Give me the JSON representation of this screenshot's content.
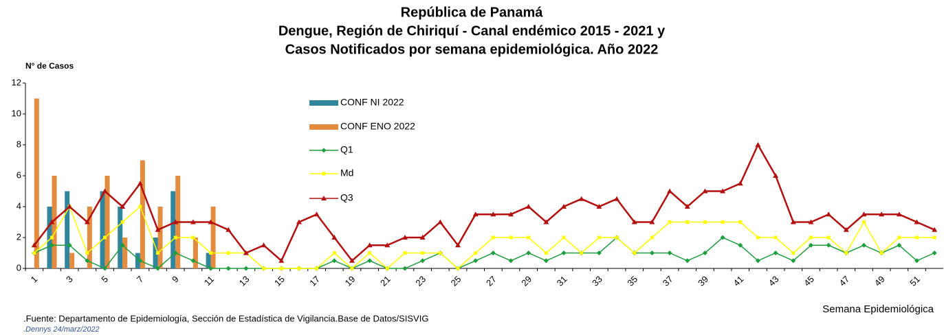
{
  "chart_data": {
    "type": "bar-line",
    "title": [
      "República de Panamá",
      "Dengue, Región de Chiriquí - Canal endémico 2015 - 2021 y",
      "Casos Notificados por semana epidemiológica. Año 2022"
    ],
    "y_label": "N° de Casos",
    "x_label": "Semana Epidemiológica",
    "source": ".Fuente: Departamento de Epidemiología, Sección de Estadística de Vigilancia.Base de Datos/SISVIG",
    "author": ".Dennys 24/marz/2022",
    "categories": [
      1,
      null,
      3,
      null,
      5,
      null,
      7,
      null,
      9,
      null,
      11,
      null,
      13,
      null,
      15,
      null,
      17,
      null,
      19,
      null,
      21,
      null,
      23,
      null,
      25,
      null,
      27,
      null,
      29,
      null,
      31,
      null,
      33,
      null,
      35,
      null,
      37,
      null,
      39,
      null,
      41,
      null,
      43,
      null,
      45,
      null,
      47,
      null,
      49,
      null,
      51,
      null
    ],
    "ylim": [
      0,
      12
    ],
    "yticks": [
      0,
      2,
      4,
      6,
      8,
      10,
      12
    ],
    "series": [
      {
        "name": "CONF NI 2022",
        "kind": "bar",
        "color": "#31859c",
        "values": [
          0,
          4,
          5,
          0,
          5,
          4,
          1,
          2,
          5,
          0,
          1,
          null,
          null,
          null,
          null,
          null,
          null,
          null,
          null,
          null,
          null,
          null,
          null,
          null,
          null,
          null,
          null,
          null,
          null,
          null,
          null,
          null,
          null,
          null,
          null,
          null,
          null,
          null,
          null,
          null,
          null,
          null,
          null,
          null,
          null,
          null,
          null,
          null,
          null,
          null,
          null,
          null
        ]
      },
      {
        "name": "CONF ENO 2022",
        "kind": "bar",
        "color": "#e38b3f",
        "values": [
          11,
          6,
          1,
          4,
          6,
          2,
          7,
          4,
          6,
          2,
          4,
          null,
          null,
          null,
          null,
          null,
          null,
          null,
          null,
          null,
          null,
          null,
          null,
          null,
          null,
          null,
          null,
          null,
          null,
          null,
          null,
          null,
          null,
          null,
          null,
          null,
          null,
          null,
          null,
          null,
          null,
          null,
          null,
          null,
          null,
          null,
          null,
          null,
          null,
          null,
          null,
          null
        ]
      },
      {
        "name": "Q1",
        "kind": "line",
        "marker": "diamond",
        "color": "#1e9e3e",
        "values": [
          1,
          1.5,
          1.5,
          0.5,
          0,
          1.5,
          0.5,
          0,
          1,
          0.5,
          0,
          0,
          0,
          0,
          0,
          0,
          0,
          0.5,
          0,
          0.5,
          0,
          0,
          0.5,
          1,
          0,
          0.5,
          1,
          0.5,
          1,
          0.5,
          1,
          1,
          1,
          2,
          1,
          1,
          1,
          0.5,
          1,
          2,
          1.5,
          0.5,
          1,
          0.5,
          1.5,
          1.5,
          1,
          1.5,
          1,
          1.5,
          0.5,
          1
        ]
      },
      {
        "name": "Md",
        "kind": "line",
        "marker": "square",
        "color": "#ffff00",
        "values": [
          1,
          2,
          4,
          1,
          2,
          3,
          4,
          1,
          2,
          2,
          1,
          1,
          1,
          0,
          0,
          0,
          0,
          1,
          0,
          1,
          0,
          1,
          1,
          1,
          0,
          1,
          2,
          2,
          2,
          1,
          2,
          1,
          2,
          2,
          1,
          2,
          3,
          3,
          3,
          3,
          3,
          2,
          2,
          1,
          2,
          2,
          1,
          3,
          1,
          2,
          2,
          2
        ]
      },
      {
        "name": "Q3",
        "kind": "line",
        "marker": "triangle",
        "color": "#b3100f",
        "values": [
          1.5,
          3,
          4,
          3,
          5,
          4,
          5.5,
          2.5,
          3,
          3,
          3,
          2.5,
          1,
          1.5,
          0.5,
          3,
          3.5,
          2,
          0.5,
          1.5,
          1.5,
          2,
          2,
          3,
          1.5,
          3.5,
          3.5,
          3.5,
          4,
          3,
          4,
          4.5,
          4,
          4.5,
          3,
          3,
          5,
          4,
          5,
          5,
          5.5,
          8,
          6,
          3,
          3,
          3.5,
          2.5,
          3.5,
          3.5,
          3.5,
          3,
          2.5
        ]
      }
    ]
  }
}
